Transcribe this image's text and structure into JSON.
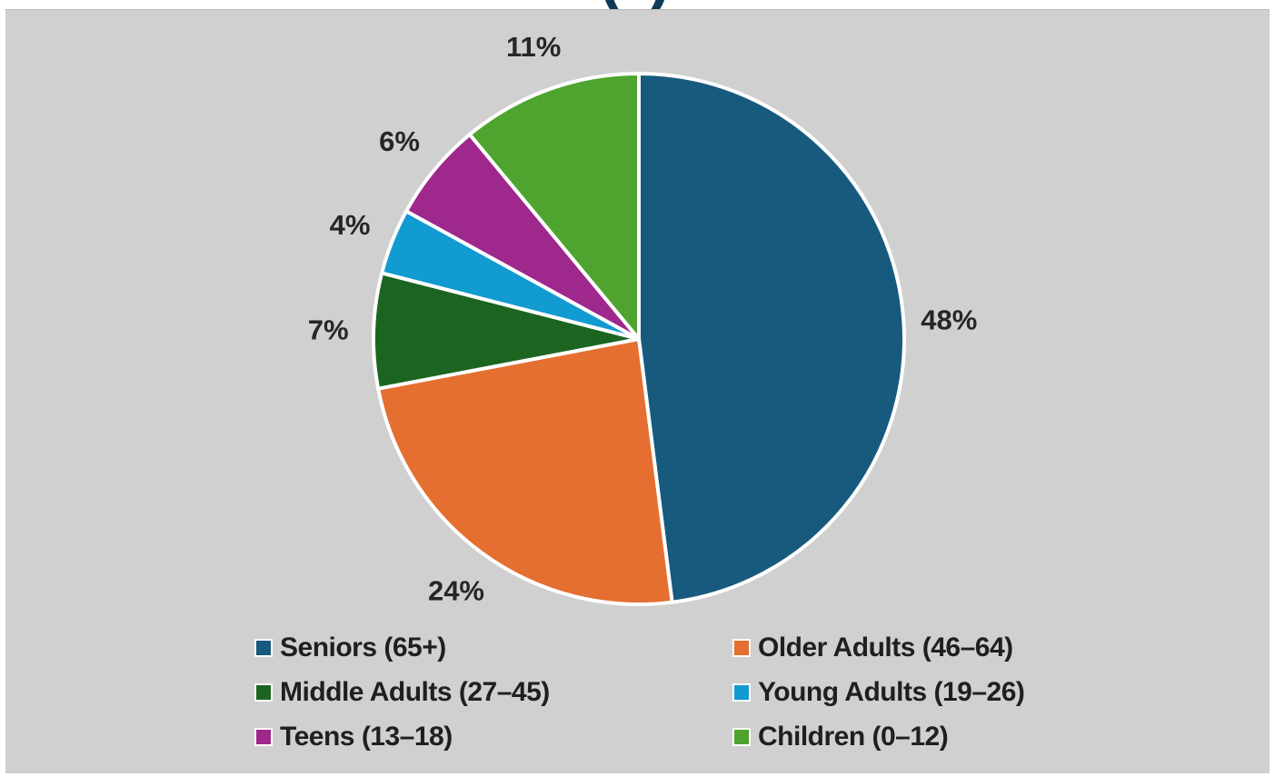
{
  "chart_data": {
    "type": "pie",
    "title": "",
    "slices": [
      {
        "label": "Seniors (65+)",
        "value": 48,
        "display": "48%",
        "color": "#175a7d"
      },
      {
        "label": "Older Adults (46–64)",
        "value": 24,
        "display": "24%",
        "color": "#e56e31"
      },
      {
        "label": "Middle Adults (27–45)",
        "value": 7,
        "display": "7%",
        "color": "#1b6520"
      },
      {
        "label": "Young Adults (19–26)",
        "value": 4,
        "display": "4%",
        "color": "#129bd1"
      },
      {
        "label": "Teens (13–18)",
        "value": 6,
        "display": "6%",
        "color": "#9e288c"
      },
      {
        "label": "Children (0–12)",
        "value": 11,
        "display": "11%",
        "color": "#4ea42e"
      }
    ],
    "legend_position": "bottom"
  }
}
